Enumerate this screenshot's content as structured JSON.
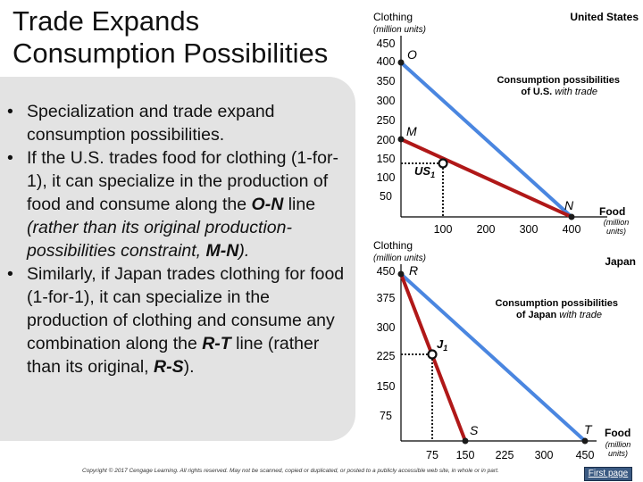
{
  "slide": {
    "title_line1": "Trade Expands",
    "title_line2": "Consumption Possibilities",
    "bullets": [
      {
        "parts": [
          "Specialization and trade expand consumption possibilities."
        ]
      },
      {
        "parts": [
          "If the U.S. trades food for clothing (1-for-1), it can specialize in the production of food and consume along the ",
          "O-N",
          " line ",
          "(rather than its original production-possibilities constraint, ",
          "M-N",
          ")."
        ]
      },
      {
        "parts": [
          "Similarly, if Japan trades clothing for food (1-for-1), it can specialize in the production of clothing and consume any combination along the ",
          "R-T",
          " line (rather than its original, ",
          "R-S",
          ")."
        ]
      }
    ],
    "copyright": "Copyright © 2017 Cengage Learning. All rights reserved. May not be scanned, copied or duplicated, or posted to a publicly accessible web site, in whole or in part.",
    "first_page_label": "First page"
  },
  "us_graph": {
    "country": "United States",
    "y_axis_title": "Clothing",
    "y_axis_unit": "(million units)",
    "x_axis_title": "Food",
    "x_axis_unit": "(million units)",
    "y_ticks": [
      "450",
      "400",
      "350",
      "300",
      "250",
      "200",
      "150",
      "100",
      "50"
    ],
    "x_ticks": [
      "100",
      "200",
      "300",
      "400"
    ],
    "point_labels": {
      "O": "O",
      "M": "M",
      "US1": "US",
      "US1_sub": "1",
      "N": "N"
    },
    "annotation_line1": "Consumption possibilities",
    "annotation_line2_a": "of U.S. ",
    "annotation_line2_b": "with trade"
  },
  "japan_graph": {
    "country": "Japan",
    "y_axis_title": "Clothing",
    "y_axis_unit": "(million units)",
    "x_axis_title": "Food",
    "x_axis_unit": "(million units)",
    "y_ticks": [
      "450",
      "375",
      "300",
      "225",
      "150",
      "75"
    ],
    "x_ticks": [
      "75",
      "150",
      "225",
      "300",
      "450"
    ],
    "point_labels": {
      "R": "R",
      "J1": "J",
      "J1_sub": "1",
      "S": "S",
      "T": "T"
    },
    "annotation_line1": "Consumption possibilities",
    "annotation_line2_a": "of Japan ",
    "annotation_line2_b": "with trade"
  },
  "chart_data": [
    {
      "type": "line",
      "title": "United States",
      "xlabel": "Food (million units)",
      "ylabel": "Clothing (million units)",
      "xlim": [
        0,
        450
      ],
      "ylim": [
        0,
        450
      ],
      "series": [
        {
          "name": "Consumption possibilities of U.S. with trade",
          "x": [
            0,
            400
          ],
          "y": [
            400,
            0
          ],
          "color": "#4a86e0"
        },
        {
          "x": [
            0,
            400
          ],
          "y": [
            200,
            0
          ],
          "color": "#b01818"
        }
      ],
      "points": [
        {
          "label": "O",
          "x": 0,
          "y": 400
        },
        {
          "label": "M",
          "x": 0,
          "y": 200
        },
        {
          "label": "US1",
          "x": 100,
          "y": 150
        },
        {
          "label": "N",
          "x": 400,
          "y": 0
        }
      ]
    },
    {
      "type": "line",
      "title": "Japan",
      "xlabel": "Food (million units)",
      "ylabel": "Clothing (million units)",
      "xlim": [
        0,
        450
      ],
      "ylim": [
        0,
        450
      ],
      "series": [
        {
          "name": "Consumption possibilities of Japan with trade",
          "x": [
            0,
            450
          ],
          "y": [
            450,
            0
          ],
          "color": "#4a86e0"
        },
        {
          "x": [
            0,
            150
          ],
          "y": [
            450,
            0
          ],
          "color": "#b01818"
        }
      ],
      "points": [
        {
          "label": "R",
          "x": 0,
          "y": 450
        },
        {
          "label": "J1",
          "x": 75,
          "y": 225
        },
        {
          "label": "S",
          "x": 150,
          "y": 0
        },
        {
          "label": "T",
          "x": 450,
          "y": 0
        }
      ]
    }
  ]
}
